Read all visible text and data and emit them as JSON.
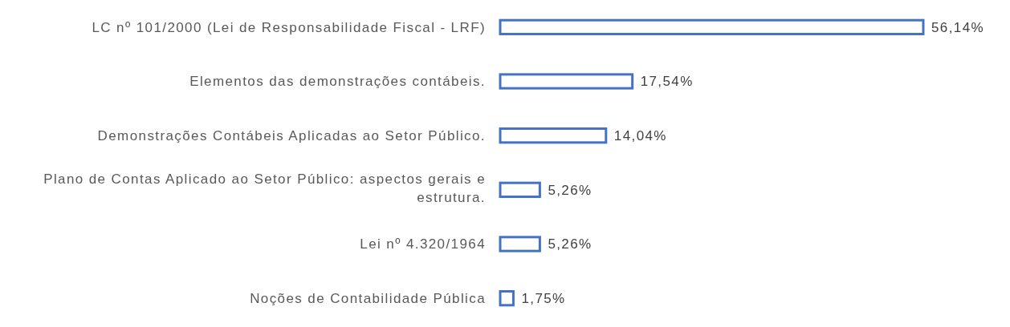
{
  "chart_data": {
    "type": "bar",
    "orientation": "horizontal",
    "categories": [
      "LC nº 101/2000 (Lei de Responsabilidade Fiscal - LRF)",
      "Elementos das demonstrações contábeis.",
      "Demonstrações Contábeis Aplicadas ao Setor Público.",
      "Plano de Contas Aplicado ao Setor Público: aspectos gerais e estrutura.",
      "Lei nº 4.320/1964",
      "Noções de Contabilidade Pública"
    ],
    "values": [
      56.14,
      17.54,
      14.04,
      5.26,
      5.26,
      1.75
    ],
    "value_labels": [
      "56,14%",
      "17,54%",
      "14,04%",
      "5,26%",
      "5,26%",
      "1,75%"
    ],
    "color": "#4472c4"
  }
}
